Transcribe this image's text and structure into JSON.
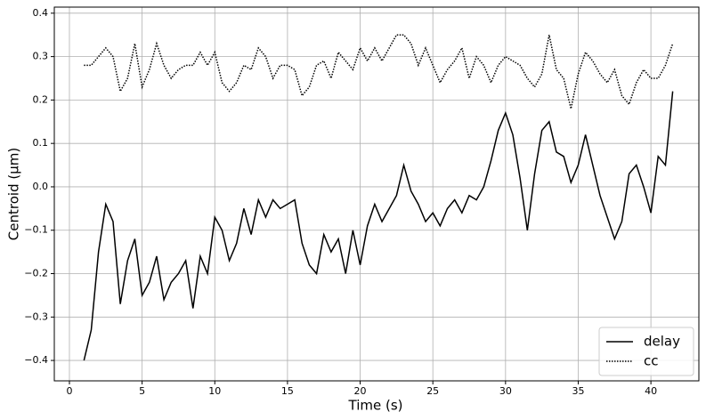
{
  "chart_data": {
    "type": "line",
    "xlabel": "Time (s)",
    "ylabel": "Centroid (μm)",
    "x": [
      1,
      1.5,
      2,
      2.5,
      3,
      3.5,
      4,
      4.5,
      5,
      5.5,
      6,
      6.5,
      7,
      7.5,
      8,
      8.5,
      9,
      9.5,
      10,
      10.5,
      11,
      11.5,
      12,
      12.5,
      13,
      13.5,
      14,
      14.5,
      15,
      15.5,
      16,
      16.5,
      17,
      17.5,
      18,
      18.5,
      19,
      19.5,
      20,
      20.5,
      21,
      21.5,
      22,
      22.5,
      23,
      23.5,
      24,
      24.5,
      25,
      25.5,
      26,
      26.5,
      27,
      27.5,
      28,
      28.5,
      29,
      29.5,
      30,
      30.5,
      31,
      31.5,
      32,
      32.5,
      33,
      33.5,
      34,
      34.5,
      35,
      35.5,
      36,
      36.5,
      37,
      37.5,
      38,
      38.5,
      39,
      39.5,
      40,
      40.5,
      41,
      41.5
    ],
    "series": [
      {
        "name": "delay",
        "color": "#000000",
        "dash": "solid",
        "values": [
          -0.4,
          -0.33,
          -0.15,
          -0.04,
          -0.08,
          -0.27,
          -0.17,
          -0.12,
          -0.25,
          -0.22,
          -0.16,
          -0.26,
          -0.22,
          -0.2,
          -0.17,
          -0.28,
          -0.16,
          -0.2,
          -0.07,
          -0.1,
          -0.17,
          -0.13,
          -0.05,
          -0.11,
          -0.03,
          -0.07,
          -0.03,
          -0.05,
          -0.04,
          -0.03,
          -0.13,
          -0.18,
          -0.2,
          -0.11,
          -0.15,
          -0.12,
          -0.2,
          -0.1,
          -0.18,
          -0.09,
          -0.04,
          -0.08,
          -0.05,
          -0.02,
          0.05,
          -0.01,
          -0.04,
          -0.08,
          -0.06,
          -0.09,
          -0.05,
          -0.03,
          -0.06,
          -0.02,
          -0.03,
          0.0,
          0.06,
          0.13,
          0.17,
          0.12,
          0.02,
          -0.1,
          0.03,
          0.13,
          0.15,
          0.08,
          0.07,
          0.01,
          0.05,
          0.12,
          0.05,
          -0.02,
          -0.07,
          -0.12,
          -0.08,
          0.03,
          0.05,
          0.0,
          -0.06,
          0.07,
          0.05,
          0.22
        ]
      },
      {
        "name": "cc",
        "color": "#000000",
        "dash": "dotted",
        "values": [
          0.28,
          0.28,
          0.3,
          0.32,
          0.3,
          0.22,
          0.25,
          0.33,
          0.23,
          0.27,
          0.33,
          0.28,
          0.25,
          0.27,
          0.28,
          0.28,
          0.31,
          0.28,
          0.31,
          0.24,
          0.22,
          0.24,
          0.28,
          0.27,
          0.32,
          0.3,
          0.25,
          0.28,
          0.28,
          0.27,
          0.21,
          0.23,
          0.28,
          0.29,
          0.25,
          0.31,
          0.29,
          0.27,
          0.32,
          0.29,
          0.32,
          0.29,
          0.32,
          0.35,
          0.35,
          0.33,
          0.28,
          0.32,
          0.28,
          0.24,
          0.27,
          0.29,
          0.32,
          0.25,
          0.3,
          0.28,
          0.24,
          0.28,
          0.3,
          0.29,
          0.28,
          0.25,
          0.23,
          0.26,
          0.35,
          0.27,
          0.25,
          0.18,
          0.26,
          0.31,
          0.29,
          0.26,
          0.24,
          0.27,
          0.21,
          0.19,
          0.24,
          0.27,
          0.25,
          0.25,
          0.28,
          0.33
        ]
      }
    ],
    "xlim": [
      -1.04,
      43.3
    ],
    "ylim": [
      -0.447,
      0.414
    ],
    "xticks": [
      0,
      5,
      10,
      15,
      20,
      25,
      30,
      35,
      40
    ],
    "yticks": [
      {
        "value": -0.4,
        "label": "−0.4"
      },
      {
        "value": -0.3,
        "label": "−0.3"
      },
      {
        "value": -0.2,
        "label": "−0.2"
      },
      {
        "value": -0.1,
        "label": "−0.1"
      },
      {
        "value": 0,
        "label": "0.0"
      },
      0.1,
      0.2,
      0.3,
      0.4
    ],
    "grid": true,
    "legend": "lower right"
  }
}
